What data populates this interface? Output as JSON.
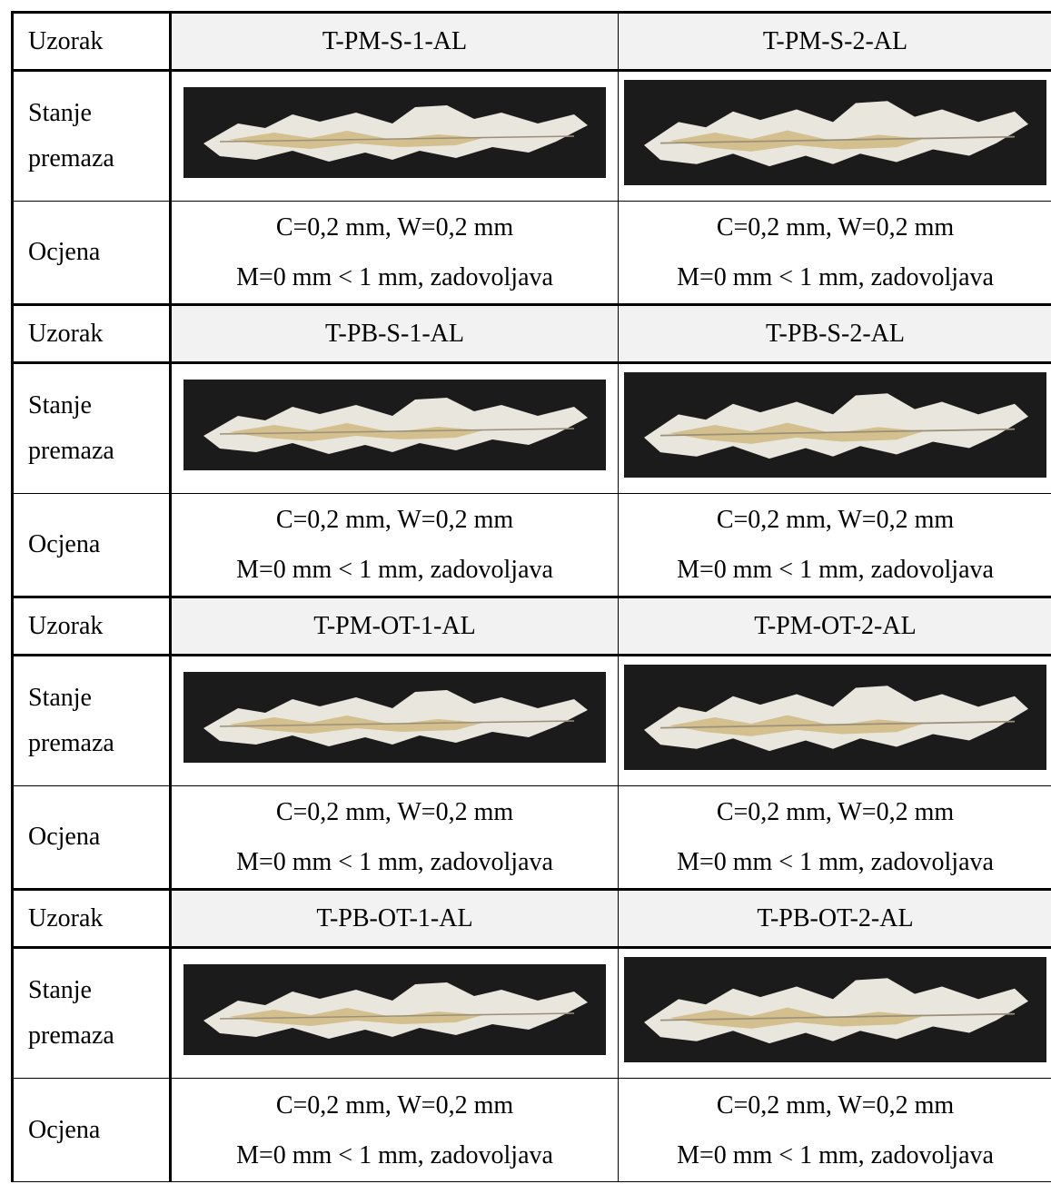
{
  "table": {
    "groups": [
      {
        "sample_label": "Uzorak",
        "samples": [
          "T-PM-S-1-AL",
          "T-PM-S-2-AL"
        ],
        "state_label": "Stanje premaza",
        "rating_label": "Ocjena",
        "ratings": [
          [
            "C=0,2 mm, W=0,2 mm",
            "M=0 mm < 1 mm, zadovoljava"
          ],
          [
            "C=0,2 mm, W=0,2 mm",
            "M=0 mm < 1 mm, zadovoljava"
          ]
        ]
      },
      {
        "sample_label": "Uzorak",
        "samples": [
          "T-PB-S-1-AL",
          "T-PB-S-2-AL"
        ],
        "state_label": "Stanje premaza",
        "rating_label": "Ocjena",
        "ratings": [
          [
            "C=0,2 mm, W=0,2 mm",
            "M=0 mm < 1 mm, zadovoljava"
          ],
          [
            "C=0,2 mm, W=0,2 mm",
            "M=0 mm < 1 mm, zadovoljava"
          ]
        ]
      },
      {
        "sample_label": "Uzorak",
        "samples": [
          "T-PM-OT-1-AL",
          "T-PM-OT-2-AL"
        ],
        "state_label": "Stanje premaza",
        "rating_label": "Ocjena",
        "ratings": [
          [
            "C=0,2 mm, W=0,2 mm",
            "M=0 mm < 1 mm, zadovoljava"
          ],
          [
            "C=0,2 mm, W=0,2 mm",
            "M=0 mm < 1 mm, zadovoljava"
          ]
        ]
      },
      {
        "sample_label": "Uzorak",
        "samples": [
          "T-PB-OT-1-AL",
          "T-PB-OT-2-AL"
        ],
        "state_label": "Stanje premaza",
        "rating_label": "Ocjena",
        "ratings": [
          [
            "C=0,2 mm, W=0,2 mm",
            "M=0 mm < 1 mm, zadovoljava"
          ],
          [
            "C=0,2 mm, W=0,2 mm",
            "M=0 mm < 1 mm, zadovoljava"
          ]
        ]
      }
    ]
  }
}
